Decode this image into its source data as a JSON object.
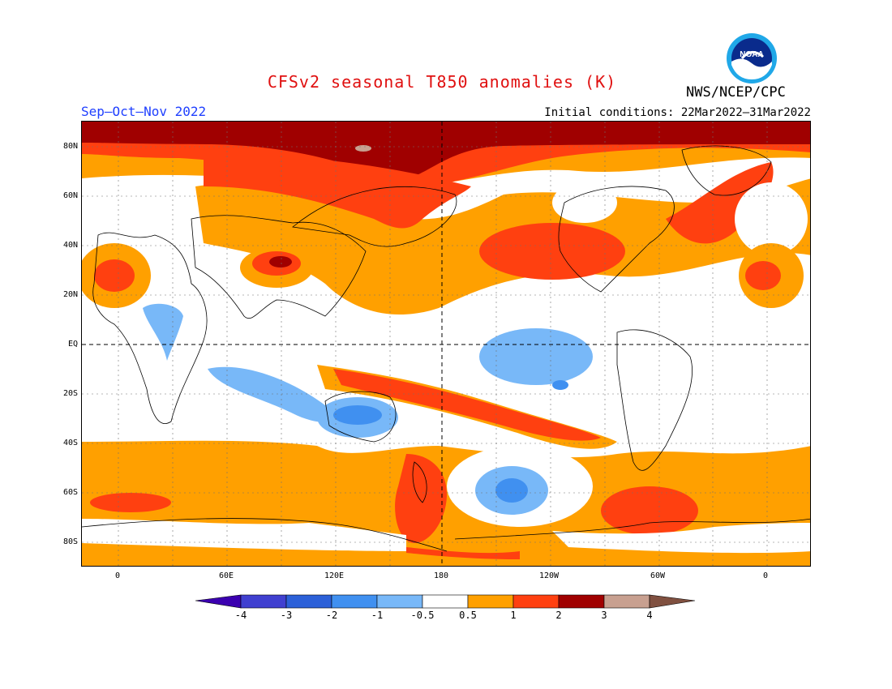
{
  "header": {
    "title": "CFSv2 seasonal T850 anomalies (K)",
    "season": "Sep–Oct–Nov 2022",
    "initial_conditions": "Initial conditions: 22Mar2022–31Mar2022",
    "agency": "NWS/NCEP/CPC",
    "logo_text": "NOAA"
  },
  "map": {
    "lat_labels": [
      "80N",
      "60N",
      "40N",
      "20N",
      "EQ",
      "20S",
      "40S",
      "60S",
      "80S"
    ],
    "lon_labels": [
      "0",
      "60E",
      "120E",
      "180",
      "120W",
      "60W",
      "0"
    ]
  },
  "colorbar": {
    "labels": [
      "-4",
      "-3",
      "-2",
      "-1",
      "-0.5",
      "0.5",
      "1",
      "2",
      "3",
      "4"
    ],
    "colors": [
      "#3b00b0",
      "#4040d0",
      "#2c60d8",
      "#4090f0",
      "#78b8f8",
      "#ffffff",
      "#ffa000",
      "#ff4010",
      "#a00000",
      "#c8a090",
      "#805040"
    ]
  },
  "chart_data": {
    "type": "heatmap",
    "title": "CFSv2 seasonal T850 anomalies (K)",
    "subtitle": "Sep–Oct–Nov 2022",
    "levels": [
      -4,
      -3,
      -2,
      -1,
      -0.5,
      0.5,
      1,
      2,
      3,
      4
    ],
    "xlim": [
      "20W",
      "20E"
    ],
    "ylim": [
      "90S",
      "90N"
    ]
  }
}
